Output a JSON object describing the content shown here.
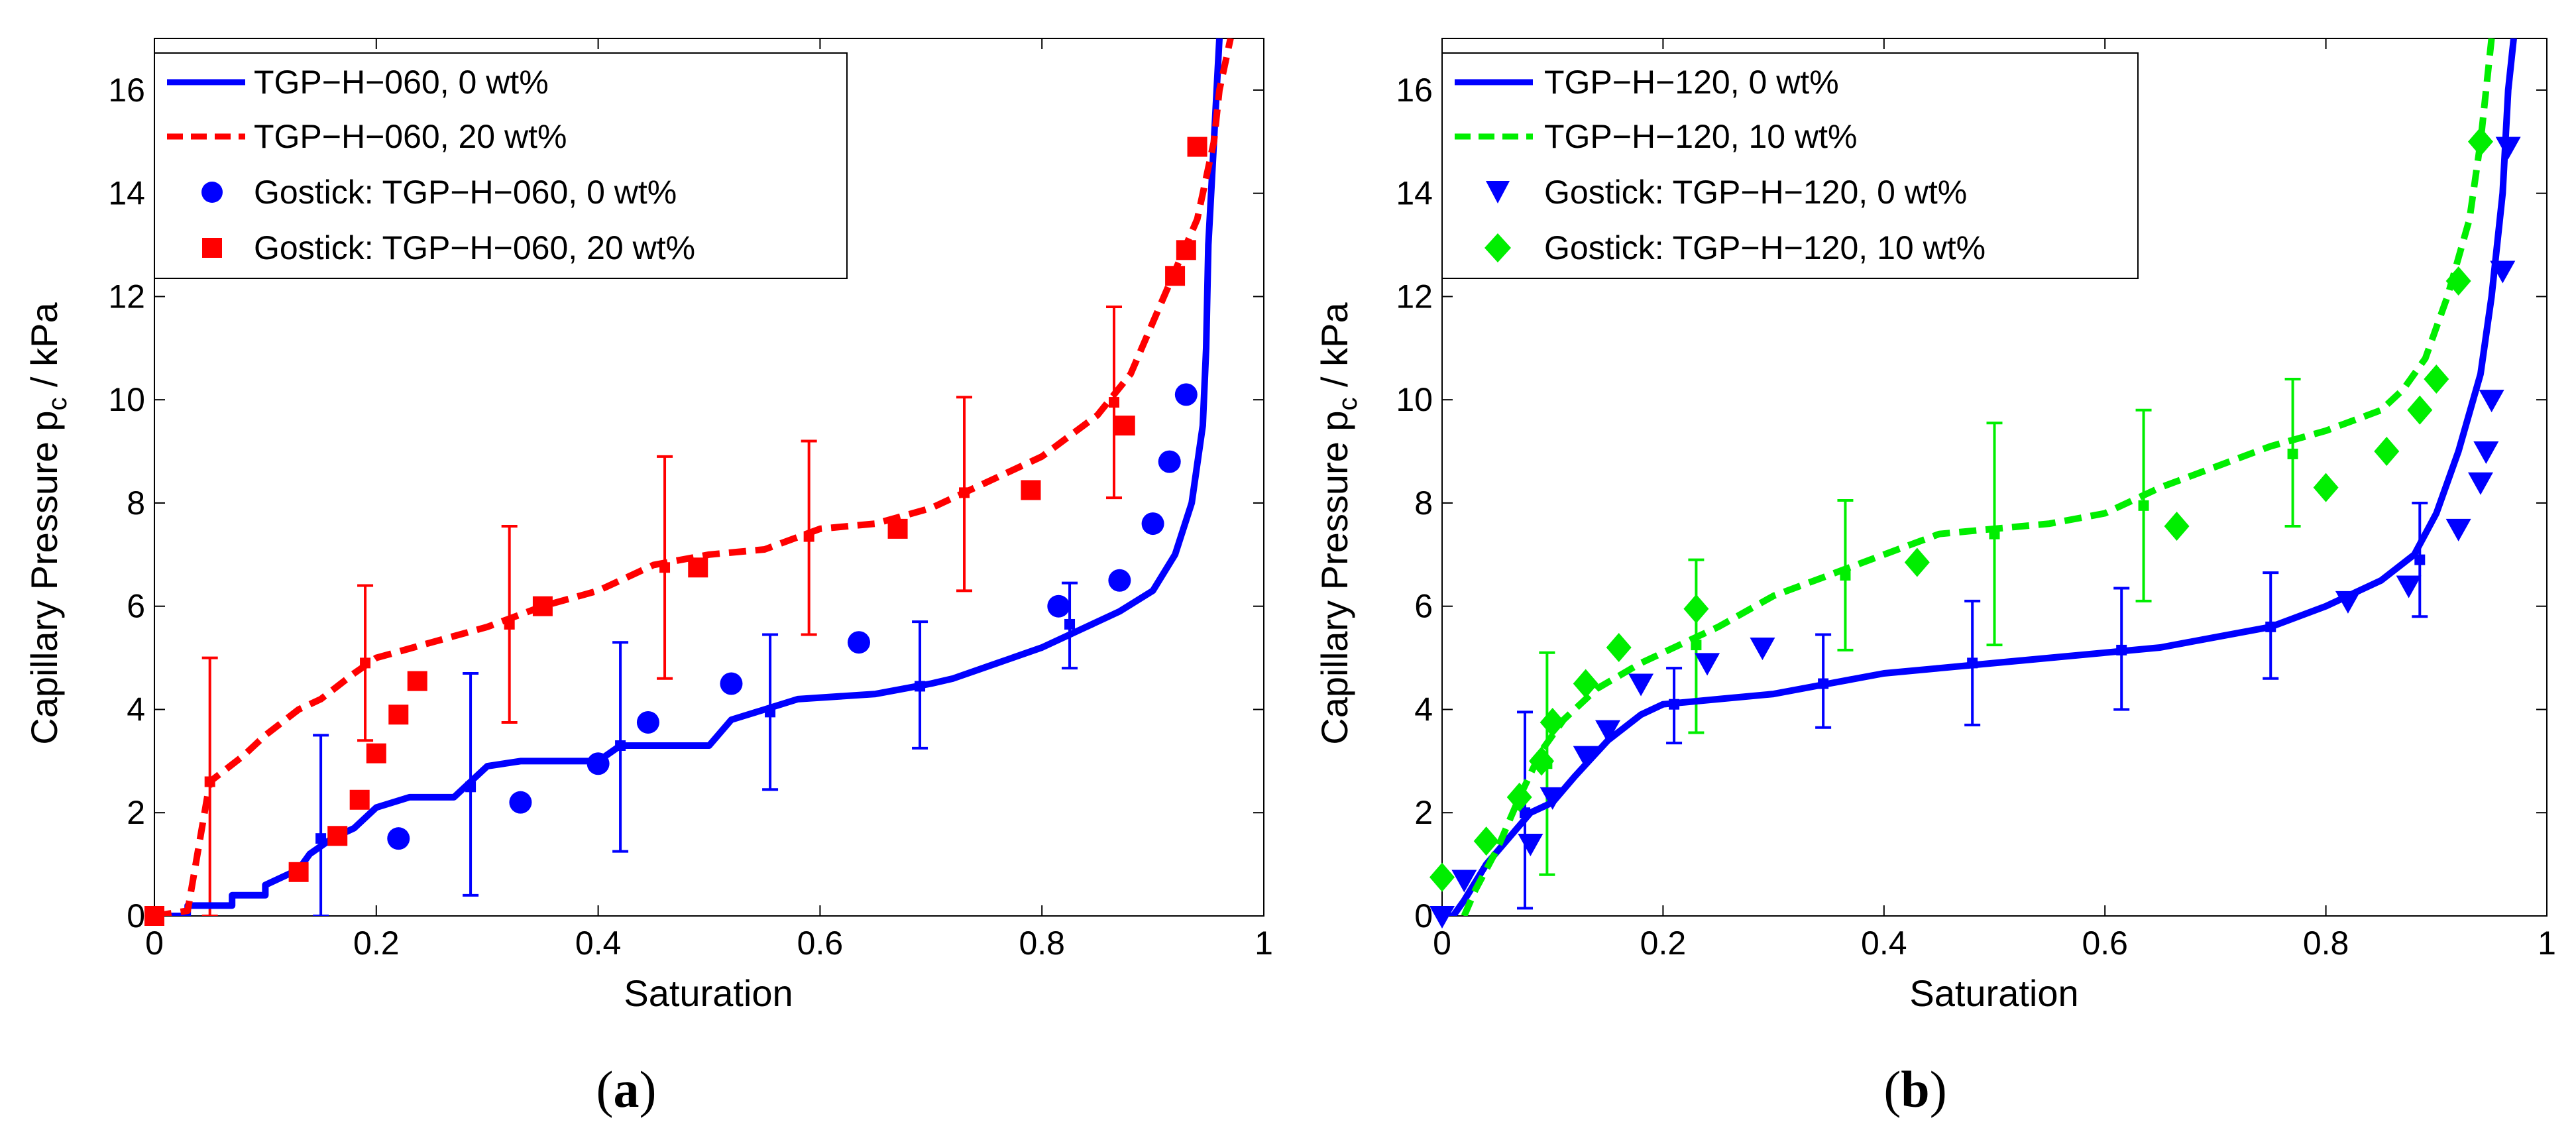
{
  "chart_data": [
    {
      "type": "line",
      "panel_label": "a",
      "xlabel": "Saturation",
      "ylabel_main": "Capillary Pressure p",
      "ylabel_sub": "c",
      "ylabel_unit": "/ kPa",
      "xlim": [
        0,
        1
      ],
      "ylim": [
        0,
        17
      ],
      "xticks": [
        0,
        0.2,
        0.4,
        0.6,
        0.8,
        1
      ],
      "xtick_labels": [
        "0",
        "0.2",
        "0.4",
        "0.6",
        "0.8",
        "1"
      ],
      "yticks": [
        0,
        2,
        4,
        6,
        8,
        10,
        12,
        14,
        16
      ],
      "ytick_labels": [
        "0",
        "2",
        "4",
        "6",
        "8",
        "10",
        "12",
        "14",
        "16"
      ],
      "legend_position": "top-left",
      "legend": [
        {
          "label": "TGP−H−060, 0 wt%",
          "style": "solid-line",
          "color": "#0000ff"
        },
        {
          "label": "TGP−H−060, 20 wt%",
          "style": "dashed-line",
          "color": "#ff0000"
        },
        {
          "label": "Gostick: TGP−H−060, 0 wt%",
          "style": "circle",
          "color": "#0000ff"
        },
        {
          "label": "Gostick: TGP−H−060, 20 wt%",
          "style": "square",
          "color": "#ff0000"
        }
      ],
      "series": [
        {
          "name": "TGP−H−060, 0 wt%",
          "kind": "line",
          "dash": false,
          "color": "#0000ff",
          "x": [
            0,
            0.03,
            0.03,
            0.07,
            0.07,
            0.1,
            0.1,
            0.13,
            0.14,
            0.16,
            0.18,
            0.2,
            0.23,
            0.27,
            0.3,
            0.33,
            0.35,
            0.4,
            0.42,
            0.5,
            0.52,
            0.55,
            0.58,
            0.65,
            0.7,
            0.72,
            0.76,
            0.8,
            0.84,
            0.87,
            0.9,
            0.92,
            0.935,
            0.945,
            0.948,
            0.95,
            0.955,
            0.96
          ],
          "y": [
            0,
            0,
            0.2,
            0.2,
            0.4,
            0.4,
            0.6,
            0.9,
            1.2,
            1.5,
            1.7,
            2.1,
            2.3,
            2.3,
            2.9,
            3.0,
            3.0,
            3.0,
            3.3,
            3.3,
            3.8,
            4.0,
            4.2,
            4.3,
            4.5,
            4.6,
            4.9,
            5.2,
            5.6,
            5.9,
            6.3,
            7.0,
            8.0,
            9.5,
            11.0,
            13.0,
            15.0,
            17.0
          ]
        },
        {
          "name": "TGP−H−060, 20 wt%",
          "kind": "line",
          "dash": true,
          "color": "#ff0000",
          "x": [
            0,
            0.03,
            0.05,
            0.08,
            0.1,
            0.13,
            0.15,
            0.18,
            0.2,
            0.25,
            0.3,
            0.35,
            0.4,
            0.45,
            0.5,
            0.55,
            0.6,
            0.65,
            0.7,
            0.75,
            0.8,
            0.85,
            0.88,
            0.9,
            0.92,
            0.94,
            0.955,
            0.96,
            0.97
          ],
          "y": [
            0,
            0.1,
            2.6,
            3.1,
            3.5,
            4.0,
            4.2,
            4.7,
            5.0,
            5.3,
            5.6,
            6.0,
            6.3,
            6.8,
            7.0,
            7.1,
            7.5,
            7.6,
            7.9,
            8.4,
            8.9,
            9.7,
            10.5,
            11.5,
            12.5,
            13.5,
            15.0,
            16.0,
            17.0
          ]
        },
        {
          "name": "Gostick: TGP−H−060, 0 wt%",
          "kind": "scatter",
          "marker": "circle",
          "color": "#0000ff",
          "x": [
            0.22,
            0.33,
            0.4,
            0.445,
            0.52,
            0.635,
            0.815,
            0.87,
            0.9,
            0.915,
            0.93
          ],
          "y": [
            1.5,
            2.2,
            2.95,
            3.75,
            4.5,
            5.3,
            6.0,
            6.5,
            7.6,
            8.8,
            10.1
          ]
        },
        {
          "name": "Gostick: TGP−H−060, 20 wt%",
          "kind": "scatter",
          "marker": "square",
          "color": "#ff0000",
          "x": [
            0,
            0.13,
            0.165,
            0.185,
            0.2,
            0.22,
            0.237,
            0.35,
            0.49,
            0.67,
            0.79,
            0.875,
            0.92,
            0.93,
            0.94
          ],
          "y": [
            0,
            0.85,
            1.55,
            2.25,
            3.15,
            3.9,
            4.55,
            6.0,
            6.75,
            7.5,
            8.25,
            9.5,
            12.4,
            12.9,
            14.9
          ]
        }
      ],
      "error_bars": [
        {
          "color": "#ff0000",
          "x": [
            0.05,
            0.19,
            0.32,
            0.46,
            0.59,
            0.73,
            0.865
          ],
          "y": [
            2.6,
            4.9,
            5.65,
            6.75,
            7.35,
            8.2,
            9.95
          ],
          "low": [
            0,
            3.4,
            3.75,
            4.6,
            5.45,
            6.3,
            8.1
          ],
          "high": [
            5.0,
            6.4,
            7.55,
            8.9,
            9.2,
            10.05,
            11.8
          ]
        },
        {
          "color": "#0000ff",
          "x": [
            0.15,
            0.285,
            0.42,
            0.555,
            0.69,
            0.825
          ],
          "y": [
            1.5,
            2.5,
            3.3,
            3.95,
            4.45,
            5.65
          ],
          "low": [
            0,
            0.4,
            1.25,
            2.45,
            3.25,
            4.8
          ],
          "high": [
            3.5,
            4.7,
            5.3,
            5.45,
            5.7,
            6.45
          ]
        }
      ]
    },
    {
      "type": "line",
      "panel_label": "b",
      "xlabel": "Saturation",
      "ylabel_main": "Capillary Pressure p",
      "ylabel_sub": "c",
      "ylabel_unit": "/ kPa",
      "xlim": [
        0,
        1
      ],
      "ylim": [
        0,
        17
      ],
      "xticks": [
        0,
        0.2,
        0.4,
        0.6,
        0.8,
        1
      ],
      "xtick_labels": [
        "0",
        "0.2",
        "0.4",
        "0.6",
        "0.8",
        "1"
      ],
      "yticks": [
        0,
        2,
        4,
        6,
        8,
        10,
        12,
        14,
        16
      ],
      "ytick_labels": [
        "0",
        "2",
        "4",
        "6",
        "8",
        "10",
        "12",
        "14",
        "16"
      ],
      "legend_position": "top-left",
      "legend": [
        {
          "label": "TGP−H−120, 0 wt%",
          "style": "solid-line",
          "color": "#0000ff"
        },
        {
          "label": "TGP−H−120, 10 wt%",
          "style": "dashed-line",
          "color": "#00ee00"
        },
        {
          "label": "Gostick: TGP−H−120, 0 wt%",
          "style": "triangle-down",
          "color": "#0000ff"
        },
        {
          "label": "Gostick: TGP−H−120, 10 wt%",
          "style": "diamond",
          "color": "#00ee00"
        }
      ],
      "series": [
        {
          "name": "TGP−H−120, 0 wt%",
          "kind": "line",
          "dash": false,
          "color": "#0000ff",
          "x": [
            0,
            0.01,
            0.02,
            0.04,
            0.06,
            0.08,
            0.1,
            0.12,
            0.15,
            0.18,
            0.2,
            0.25,
            0.3,
            0.35,
            0.4,
            0.45,
            0.5,
            0.55,
            0.6,
            0.65,
            0.7,
            0.75,
            0.8,
            0.85,
            0.88,
            0.9,
            0.92,
            0.94,
            0.95,
            0.96,
            0.965,
            0.97
          ],
          "y": [
            0,
            0,
            0.3,
            1.0,
            1.5,
            2.0,
            2.2,
            2.7,
            3.4,
            3.9,
            4.1,
            4.2,
            4.3,
            4.5,
            4.7,
            4.8,
            4.9,
            5.0,
            5.1,
            5.2,
            5.4,
            5.6,
            6.0,
            6.5,
            7.0,
            7.8,
            9.0,
            10.5,
            12.0,
            14.0,
            16.0,
            17.0
          ]
        },
        {
          "name": "TGP−H−120, 10 wt%",
          "kind": "line",
          "dash": true,
          "color": "#00ee00",
          "x": [
            0.02,
            0.03,
            0.05,
            0.07,
            0.09,
            0.11,
            0.14,
            0.18,
            0.22,
            0.25,
            0.3,
            0.35,
            0.4,
            0.45,
            0.5,
            0.55,
            0.6,
            0.65,
            0.7,
            0.75,
            0.8,
            0.85,
            0.87,
            0.89,
            0.91,
            0.93,
            0.94,
            0.945,
            0.95
          ],
          "y": [
            0,
            0.5,
            1.3,
            2.3,
            3.2,
            3.8,
            4.4,
            4.9,
            5.3,
            5.6,
            6.2,
            6.6,
            7.0,
            7.4,
            7.5,
            7.6,
            7.8,
            8.3,
            8.7,
            9.1,
            9.4,
            9.8,
            10.2,
            10.8,
            12.0,
            13.5,
            15.0,
            16.0,
            17.0
          ]
        },
        {
          "name": "Gostick: TGP−H−120, 0 wt%",
          "kind": "scatter",
          "marker": "triangle-down",
          "color": "#0000ff",
          "x": [
            0,
            0.02,
            0.08,
            0.1,
            0.13,
            0.15,
            0.18,
            0.24,
            0.29,
            0.82,
            0.875,
            0.92,
            0.94,
            0.945,
            0.95,
            0.96,
            0.965
          ],
          "y": [
            0,
            0.7,
            1.4,
            2.3,
            3.1,
            3.6,
            4.5,
            4.9,
            5.2,
            6.1,
            6.4,
            7.5,
            8.4,
            9.0,
            10.0,
            12.5,
            14.9
          ]
        },
        {
          "name": "Gostick: TGP−H−120, 10 wt%",
          "kind": "scatter",
          "marker": "diamond",
          "color": "#00ee00",
          "x": [
            0,
            0.04,
            0.07,
            0.09,
            0.1,
            0.13,
            0.16,
            0.23,
            0.43,
            0.665,
            0.8,
            0.855,
            0.885,
            0.9,
            0.92,
            0.94
          ],
          "y": [
            0.75,
            1.45,
            2.3,
            3.0,
            3.75,
            4.5,
            5.2,
            5.95,
            6.85,
            7.55,
            8.3,
            9.0,
            9.8,
            10.4,
            12.3,
            15.0
          ]
        }
      ],
      "error_bars": [
        {
          "color": "#00ee00",
          "x": [
            0.095,
            0.23,
            0.365,
            0.5,
            0.635,
            0.77
          ],
          "y": [
            2.95,
            5.25,
            6.6,
            7.4,
            7.95,
            8.95
          ],
          "low": [
            0.8,
            3.55,
            5.15,
            5.25,
            6.1,
            7.55
          ],
          "high": [
            5.1,
            6.9,
            8.05,
            9.55,
            9.8,
            10.4
          ]
        },
        {
          "color": "#0000ff",
          "x": [
            0.075,
            0.21,
            0.345,
            0.48,
            0.615,
            0.75,
            0.885
          ],
          "y": [
            2.0,
            4.1,
            4.5,
            4.9,
            5.15,
            5.6,
            6.9
          ],
          "low": [
            0.15,
            3.35,
            3.65,
            3.7,
            4.0,
            4.6,
            5.8
          ],
          "high": [
            3.95,
            4.8,
            5.45,
            6.1,
            6.35,
            6.65,
            8.0
          ]
        }
      ]
    }
  ]
}
